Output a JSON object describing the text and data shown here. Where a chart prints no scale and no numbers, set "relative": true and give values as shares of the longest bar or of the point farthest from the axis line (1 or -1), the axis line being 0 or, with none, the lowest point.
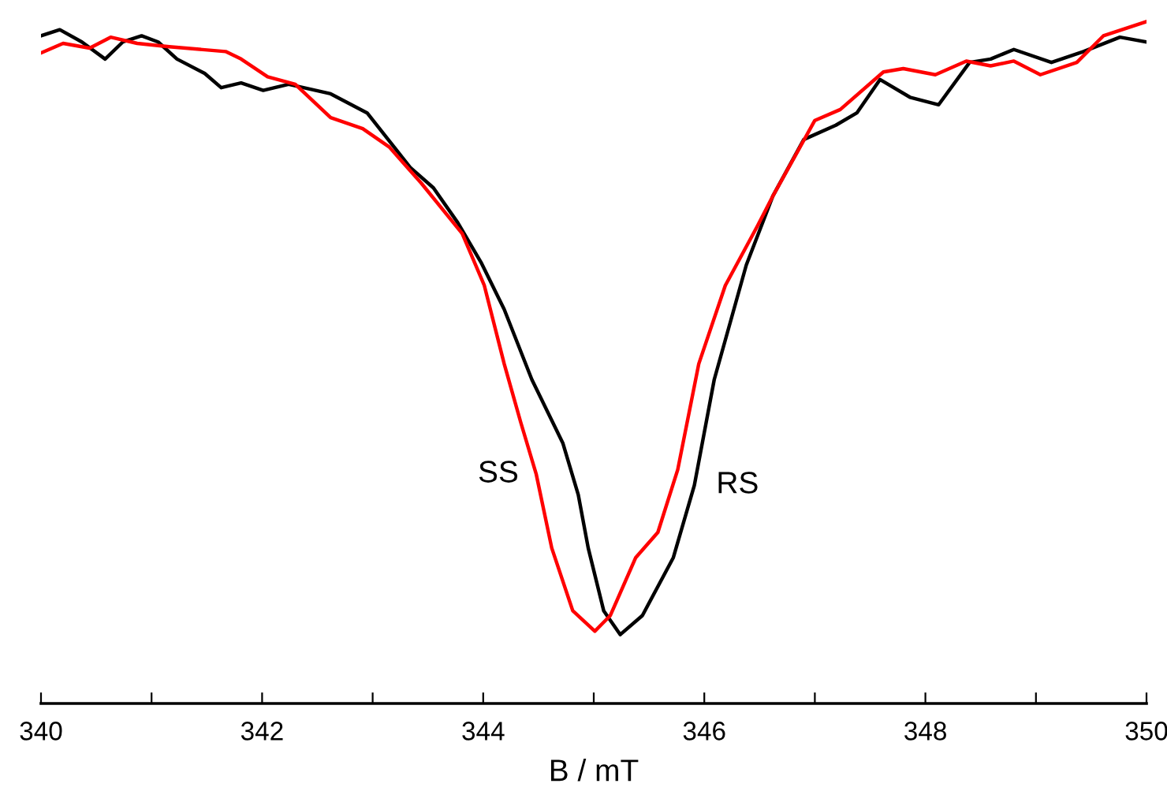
{
  "chart_data": {
    "type": "line",
    "relative": true,
    "xlabel": "B / mT",
    "xlim": [
      340,
      350
    ],
    "xticks": [
      340,
      {
        "value": 341,
        "label": null
      },
      342,
      {
        "value": 343,
        "label": null
      },
      344,
      {
        "value": 345,
        "label": null
      },
      346,
      {
        "value": 347,
        "label": null
      },
      348,
      {
        "value": 349,
        "label": null
      },
      350
    ],
    "series": [
      {
        "name": "RS",
        "color": "#000000",
        "x": [
          340.0,
          340.17,
          340.37,
          340.58,
          340.74,
          340.91,
          341.06,
          341.23,
          341.48,
          341.63,
          341.81,
          342.01,
          342.24,
          342.62,
          342.95,
          343.15,
          343.34,
          343.55,
          343.77,
          343.98,
          344.19,
          344.44,
          344.72,
          344.86,
          344.95,
          345.09,
          345.24,
          345.44,
          345.72,
          345.91,
          346.09,
          346.38,
          346.62,
          346.9,
          347.19,
          347.38,
          347.59,
          347.86,
          348.12,
          348.4,
          348.59,
          348.8,
          349.14,
          349.43,
          349.76,
          350.0
        ],
        "values": [
          0.979,
          0.988,
          0.97,
          0.945,
          0.97,
          0.979,
          0.97,
          0.945,
          0.924,
          0.903,
          0.91,
          0.899,
          0.908,
          0.894,
          0.866,
          0.825,
          0.786,
          0.756,
          0.705,
          0.647,
          0.578,
          0.475,
          0.382,
          0.306,
          0.228,
          0.136,
          0.101,
          0.129,
          0.214,
          0.32,
          0.475,
          0.643,
          0.744,
          0.827,
          0.848,
          0.866,
          0.915,
          0.889,
          0.878,
          0.94,
          0.945,
          0.959,
          0.94,
          0.956,
          0.977,
          0.97
        ]
      },
      {
        "name": "SS",
        "color": "#ff0000",
        "x": [
          340.0,
          340.2,
          340.44,
          340.63,
          340.87,
          341.16,
          341.67,
          341.81,
          342.05,
          342.3,
          342.62,
          342.91,
          343.15,
          343.44,
          343.81,
          344.01,
          344.19,
          344.34,
          344.48,
          344.62,
          344.81,
          345.01,
          345.15,
          345.38,
          345.58,
          345.76,
          345.95,
          346.19,
          346.48,
          346.62,
          347.0,
          347.23,
          347.62,
          347.8,
          348.09,
          348.37,
          348.59,
          348.8,
          349.04,
          349.37,
          349.61,
          350.0
        ],
        "values": [
          0.954,
          0.968,
          0.961,
          0.977,
          0.968,
          0.963,
          0.956,
          0.945,
          0.919,
          0.908,
          0.859,
          0.843,
          0.816,
          0.763,
          0.689,
          0.613,
          0.498,
          0.412,
          0.336,
          0.228,
          0.136,
          0.106,
          0.129,
          0.214,
          0.251,
          0.343,
          0.498,
          0.613,
          0.7,
          0.744,
          0.855,
          0.871,
          0.926,
          0.931,
          0.922,
          0.942,
          0.935,
          0.942,
          0.922,
          0.94,
          0.979,
          1.0
        ]
      }
    ]
  }
}
